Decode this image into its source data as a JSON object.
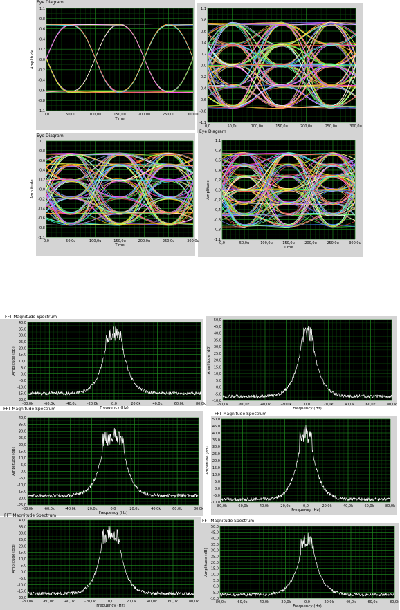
{
  "eye": {
    "title": "Eye Diagram",
    "ylabel": "Amplitude",
    "xlabel": "Time",
    "yticks": [
      "1,1",
      "0,8",
      "0,6",
      "0,4",
      "0,2",
      "0,0",
      "-0,2",
      "-0,4",
      "-0,6",
      "-0,8",
      "-1,1"
    ],
    "xticks": [
      "0,0",
      "50,0u",
      "100,0u",
      "150,0u",
      "200,0u",
      "250,0u",
      "300,0u"
    ],
    "colors": [
      "#ff4040",
      "#40ff40",
      "#4080ff",
      "#ffff40",
      "#ff40ff",
      "#40ffff",
      "#ffffff",
      "#ff9040",
      "#c080ff",
      "#80ff80",
      "#ff8080",
      "#8080ff",
      "#ffd700"
    ]
  },
  "fft": {
    "title": "FFT Magnitude Spectrum",
    "ylabel": "Amplitude (dB)",
    "xlabel": "Frequency (Hz)",
    "xticks": [
      "-80,0k",
      "-60,0k",
      "-40,0k",
      "-20,0k",
      "0,0",
      "20,0k",
      "40,0k",
      "60,0k",
      "80,0k"
    ],
    "yticks_a": [
      "40,0",
      "35,0",
      "30,0",
      "25,0",
      "20,0",
      "15,0",
      "10,0",
      "5,0",
      "0,0",
      "-5,0",
      "-10,0",
      "-15,0",
      "-20,0"
    ],
    "yticks_b": [
      "40,0",
      "35,0",
      "30,0",
      "25,0",
      "20,0",
      "15,0",
      "10,0",
      "5,0",
      "0,0",
      "-5,0",
      "-10,0",
      "-15,0",
      "-20,0",
      "-25,0"
    ],
    "yticks_c": [
      "50,0",
      "45,0",
      "40,0",
      "35,0",
      "30,0",
      "25,0",
      "20,0",
      "15,0",
      "10,0",
      "5,0",
      "0,0",
      "-5,0",
      "-10,0"
    ]
  },
  "chart_data": [
    {
      "type": "line",
      "title": "Eye Diagram",
      "xlabel": "Time",
      "ylabel": "Amplitude",
      "xlim": [
        0,
        0.0003
      ],
      "ylim": [
        -1.1,
        1.1
      ],
      "kind": "eye-2level",
      "levels": [
        -0.7,
        0.75
      ]
    },
    {
      "type": "line",
      "title": "",
      "xlabel": "",
      "ylabel": "",
      "xlim": [
        0,
        0.0003
      ],
      "ylim": [
        -1.1,
        1.1
      ],
      "kind": "eye-multilevel",
      "levels": [
        -0.8,
        -0.4,
        0,
        0.4,
        0.8
      ]
    },
    {
      "type": "line",
      "title": "Eye Diagram",
      "xlabel": "Time",
      "ylabel": "Amplitude",
      "xlim": [
        0,
        0.0003
      ],
      "ylim": [
        -1.1,
        1.1
      ],
      "kind": "eye-multilevel",
      "levels": [
        -0.8,
        -0.55,
        -0.2,
        0.2,
        0.55,
        0.8
      ]
    },
    {
      "type": "line",
      "title": "Eye Diagram",
      "xlabel": "Time",
      "ylabel": "Amplitude",
      "xlim": [
        0,
        0.0003
      ],
      "ylim": [
        -1.1,
        1.1
      ],
      "kind": "eye-multilevel",
      "levels": [
        -0.8,
        -0.55,
        -0.3,
        0,
        0.3,
        0.55,
        0.8
      ]
    },
    {
      "type": "line",
      "title": "FFT Magnitude Spectrum",
      "xlabel": "Frequency (Hz)",
      "ylabel": "Amplitude (dB)",
      "xlim": [
        -80000,
        80000
      ],
      "ylim": [
        -20,
        40
      ],
      "peak_db": 38,
      "floor_db": -15,
      "bandwidth_hz": 8000
    },
    {
      "type": "line",
      "title": "",
      "xlabel": "Frequency (Hz)",
      "ylabel": "Amplitude (dB)",
      "xlim": [
        -80000,
        80000
      ],
      "ylim": [
        -10,
        50
      ],
      "peak_db": 47,
      "floor_db": -7,
      "bandwidth_hz": 6000
    },
    {
      "type": "line",
      "title": "FFT Magnitude Spectrum",
      "xlabel": "Frequency (Hz)",
      "ylabel": "Amplitude (dB)",
      "xlim": [
        -80000,
        80000
      ],
      "ylim": [
        -25,
        40
      ],
      "peak_db": 33,
      "floor_db": -18,
      "bandwidth_hz": 10000
    },
    {
      "type": "line",
      "title": "FFT Magnitude Spectrum",
      "xlabel": "Frequency (Hz)",
      "ylabel": "Amplitude (dB)",
      "xlim": [
        -80000,
        80000
      ],
      "ylim": [
        -10,
        50
      ],
      "peak_db": 46,
      "floor_db": -8,
      "bandwidth_hz": 6000
    },
    {
      "type": "line",
      "title": "FFT Magnitude Spectrum",
      "xlabel": "Frequency (Hz)",
      "ylabel": "Amplitude (dB)",
      "xlim": [
        -80000,
        80000
      ],
      "ylim": [
        -20,
        40
      ],
      "peak_db": 36,
      "floor_db": -17,
      "bandwidth_hz": 9000
    },
    {
      "type": "line",
      "title": "FFT Magnitude Spectrum",
      "xlabel": "Frequency (Hz)",
      "ylabel": "Amplitude (dB)",
      "xlim": [
        -80000,
        80000
      ],
      "ylim": [
        -10,
        50
      ],
      "peak_db": 46,
      "floor_db": -7,
      "bandwidth_hz": 6000
    }
  ]
}
